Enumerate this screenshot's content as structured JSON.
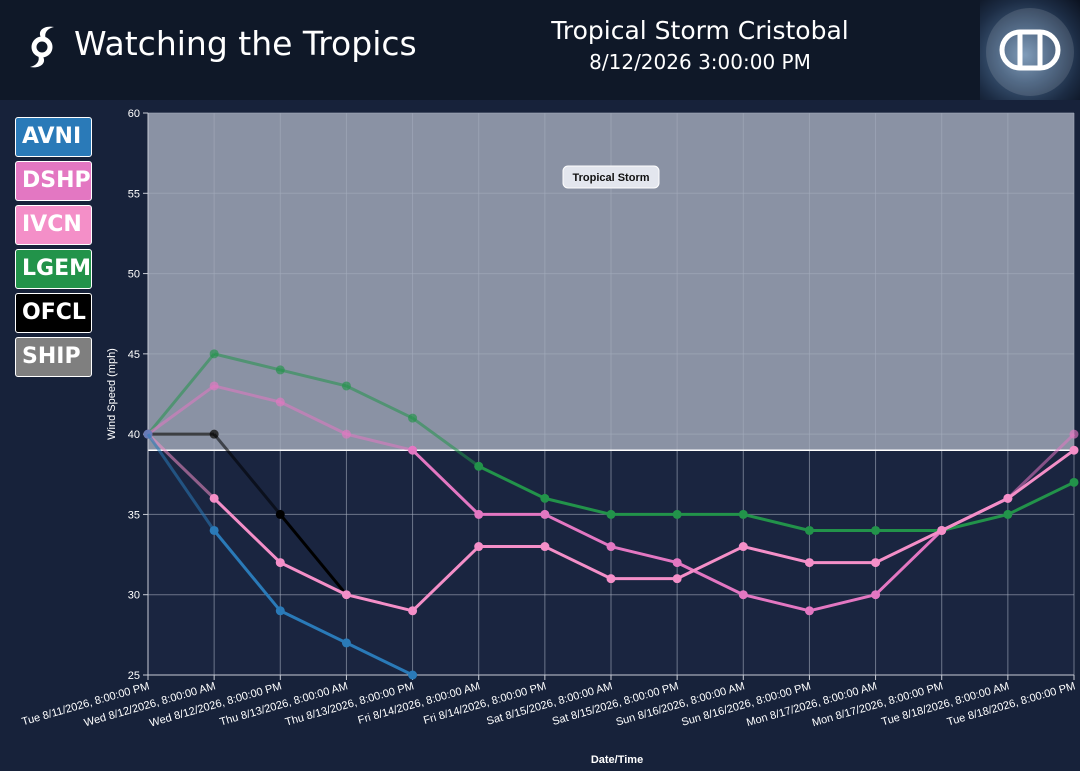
{
  "header": {
    "app_title": "Watching the Tropics",
    "storm_name": "Tropical Storm Cristobal",
    "timestamp": "8/12/2026 3:00:00 PM"
  },
  "models": [
    {
      "label": "AVNI",
      "color": "#2a7ab8"
    },
    {
      "label": "DSHP",
      "color": "#e377c2"
    },
    {
      "label": "IVCN",
      "color": "#f48fc8"
    },
    {
      "label": "LGEM",
      "color": "#22934a"
    },
    {
      "label": "OFCL",
      "color": "#000000"
    },
    {
      "label": "SHIP",
      "color": "#7f7f7f"
    }
  ],
  "chart_data": {
    "type": "line",
    "xlabel": "Date/Time",
    "ylabel": "Wind Speed (mph)",
    "ylim": [
      25,
      60
    ],
    "yticks": [
      25,
      30,
      35,
      40,
      45,
      50,
      55,
      60
    ],
    "grid": true,
    "categories": [
      "Tue 8/11/2026, 8:00:00 PM",
      "Wed 8/12/2026, 8:00:00 AM",
      "Wed 8/12/2026, 8:00:00 PM",
      "Thu 8/13/2026, 8:00:00 AM",
      "Thu 8/13/2026, 8:00:00 PM",
      "Fri 8/14/2026, 8:00:00 AM",
      "Fri 8/14/2026, 8:00:00 PM",
      "Sat 8/15/2026, 8:00:00 AM",
      "Sat 8/15/2026, 8:00:00 PM",
      "Sun 8/16/2026, 8:00:00 AM",
      "Sun 8/16/2026, 8:00:00 PM",
      "Mon 8/17/2026, 8:00:00 AM",
      "Mon 8/17/2026, 8:00:00 PM",
      "Tue 8/18/2026, 8:00:00 AM",
      "Tue 8/18/2026, 8:00:00 PM"
    ],
    "threshold": {
      "label": "Tropical Storm",
      "y": 39
    },
    "series": [
      {
        "name": "LGEM",
        "color": "#22934a",
        "values": [
          40,
          45,
          44,
          43,
          41,
          38,
          36,
          35,
          35,
          35,
          34,
          34,
          34,
          35,
          37
        ]
      },
      {
        "name": "SHIP",
        "color": "#7f7f7f",
        "values": [
          40,
          40,
          null,
          null,
          null,
          null,
          null,
          null,
          null,
          null,
          null,
          null,
          null,
          null,
          null
        ]
      },
      {
        "name": "OFCL",
        "color": "#000000",
        "values": [
          40,
          40,
          35,
          30,
          null,
          null,
          null,
          null,
          null,
          null,
          null,
          null,
          null,
          null,
          null
        ]
      },
      {
        "name": "DSHP",
        "color": "#e377c2",
        "values": [
          40,
          43,
          42,
          40,
          39,
          35,
          35,
          33,
          32,
          30,
          29,
          30,
          34,
          36,
          40
        ]
      },
      {
        "name": "IVCN",
        "color": "#f48fc8",
        "values": [
          40,
          36,
          32,
          30,
          29,
          33,
          33,
          31,
          31,
          33,
          32,
          32,
          34,
          36,
          39
        ]
      },
      {
        "name": "AVNI",
        "color": "#2a7ab8",
        "values": [
          40,
          34,
          29,
          27,
          25,
          null,
          null,
          null,
          null,
          null,
          null,
          null,
          null,
          null,
          null
        ]
      }
    ]
  }
}
